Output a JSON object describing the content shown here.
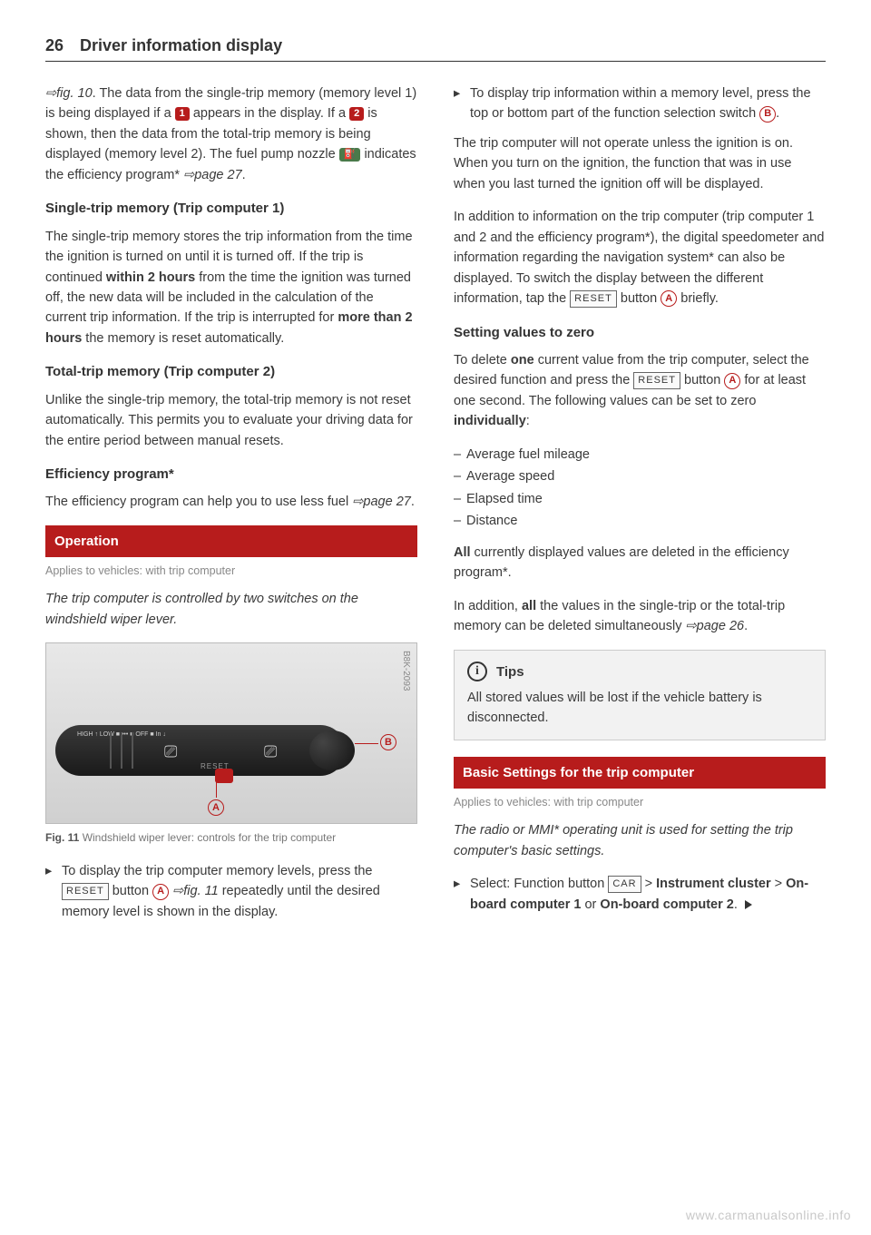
{
  "page": {
    "number": "26",
    "title": "Driver information display"
  },
  "left": {
    "p1_ref": "fig. 10",
    "p1_text_a": ". The data from the single-trip memory (memory level 1) is being displayed if a ",
    "badge1": "1",
    "p1_text_b": " appears in the display. If a ",
    "badge2": "2",
    "p1_text_c": " is shown, then the data from the total-trip memory is being displayed (memory level 2). The fuel pump nozzle ",
    "badge_nozzle": "⛽",
    "p1_text_d": " indicates the efficiency program* ",
    "p1_ref2": "page 27",
    "p1_text_e": ".",
    "h1": "Single-trip memory (Trip computer 1)",
    "p2": "The single-trip memory stores the trip information from the time the ignition is turned on until it is turned off. If the trip is continued ",
    "p2_bold1": "within 2 hours",
    "p2_b": " from the time the ignition was turned off, the new data will be included in the calculation of the current trip information. If the trip is interrupted for ",
    "p2_bold2": "more than 2 hours",
    "p2_c": " the memory is reset automatically.",
    "h2": "Total-trip memory (Trip computer 2)",
    "p3": "Unlike the single-trip memory, the total-trip memory is not reset automatically. This permits you to evaluate your driving data for the entire period between manual resets.",
    "h3": "Efficiency program*",
    "p4_a": "The efficiency program can help you to use less fuel ",
    "p4_ref": "page 27",
    "p4_b": ".",
    "banner1": "Operation",
    "applies1": "Applies to vehicles: with trip computer",
    "lead1": "The trip computer is controlled by two switches on the windshield wiper lever.",
    "fig_code": "B8K-2093",
    "lever_labels": "HIGH ↑\nLOW ■\n••• ■\nOFF ■\nIn ↓",
    "lever_reset": "RESET",
    "fig_caption_bold": "Fig. 11",
    "fig_caption": "  Windshield wiper lever: controls for the trip computer",
    "bullet1_a": "To display the trip computer memory levels, press the ",
    "reset_label": "RESET",
    "bullet1_b": " button ",
    "circle_a": "A",
    "bullet1_ref": "fig. 11",
    "bullet1_c": " repeatedly until the desired memory level is shown in the display."
  },
  "right": {
    "bullet2_a": "To display trip information within a memory level, press the top or bottom part of the function selection switch ",
    "circle_b": "B",
    "bullet2_b": ".",
    "p5": "The trip computer will not operate unless the ignition is on. When you turn on the ignition, the function that was in use when you last turned the ignition off will be displayed.",
    "p6_a": "In addition to information on the trip computer (trip computer 1 and 2 and the efficiency program*), the digital speedometer and information regarding the navigation system* can also be displayed. To switch the display between the different information, tap the ",
    "reset_label": "RESET",
    "p6_b": " button ",
    "circle_a": "A",
    "p6_c": " briefly.",
    "h4": "Setting values to zero",
    "p7_a": "To delete ",
    "p7_bold1": "one",
    "p7_b": " current value from the trip computer, select the desired function and press the ",
    "p7_c": " button ",
    "p7_d": " for at least one second. The following values can be set to zero ",
    "p7_bold2": "individually",
    "p7_e": ":",
    "dash": [
      "Average fuel mileage",
      "Average speed",
      "Elapsed time",
      "Distance"
    ],
    "p8_a": "All",
    "p8_b": " currently displayed values are deleted in the efficiency program*.",
    "p9_a": "In addition, ",
    "p9_bold": "all",
    "p9_b": " the values in the single-trip or the total-trip memory can be deleted simultaneously ",
    "p9_ref": "page 26",
    "p9_c": ".",
    "tips_title": "Tips",
    "tips_body": "All stored values will be lost if the vehicle battery is disconnected.",
    "banner2": "Basic Settings for the trip computer",
    "applies2": "Applies to vehicles: with trip computer",
    "lead2": "The radio or MMI* operating unit is used for setting the trip computer's basic settings.",
    "bullet3_a": "Select: Function button ",
    "car_label": "CAR",
    "bullet3_b": " > ",
    "bullet3_bold1": "Instrument cluster",
    "bullet3_c": " > ",
    "bullet3_bold2": "On-board computer 1",
    "bullet3_d": " or ",
    "bullet3_bold3": "On-board computer 2",
    "bullet3_e": "."
  },
  "watermark": "www.carmanualsonline.info"
}
